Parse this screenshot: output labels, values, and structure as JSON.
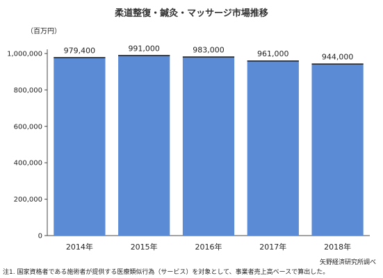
{
  "chart_data": {
    "type": "bar",
    "title": "柔道整復・鍼灸・マッサージ市場推移",
    "ylabel": "（百万円）",
    "categories": [
      "2014年",
      "2015年",
      "2016年",
      "2017年",
      "2018年"
    ],
    "values": [
      979400,
      991000,
      983000,
      961000,
      944000
    ],
    "data_labels": [
      "979,400",
      "991,000",
      "983,000",
      "961,000",
      "944,000"
    ],
    "ylim": [
      0,
      1000000
    ],
    "yticks": [
      0,
      200000,
      400000,
      600000,
      800000,
      1000000
    ],
    "ytick_labels": [
      "0",
      "200,000",
      "400,000",
      "600,000",
      "800,000",
      "1,000,000"
    ],
    "bar_color": "#5b8bd4",
    "bar_top_color": "#1a1a1a",
    "grid": false,
    "legend": "none"
  },
  "footnote": "注1. 国家資格者である施術者が提供する医療類似行為（サービス）を対象として、事業者売上高ベースで算出した。",
  "source": "矢野経済研究所調べ"
}
